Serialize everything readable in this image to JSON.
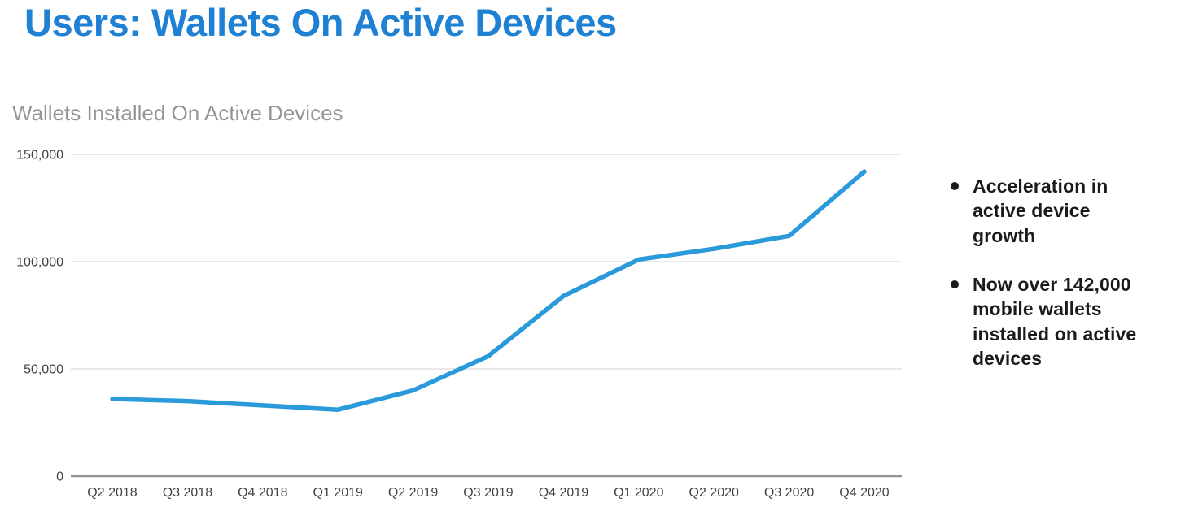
{
  "slide": {
    "title": "Users: Wallets On Active Devices",
    "title_color": "#1e81d4",
    "background": "#ffffff"
  },
  "chart_data": {
    "type": "line",
    "title": "Wallets Installed On Active Devices",
    "title_color": "#969696",
    "categories": [
      "Q2 2018",
      "Q3 2018",
      "Q4 2018",
      "Q1 2019",
      "Q2 2019",
      "Q3 2019",
      "Q4 2019",
      "Q1 2020",
      "Q2 2020",
      "Q3 2020",
      "Q4 2020"
    ],
    "series": [
      {
        "name": "Wallets Installed On Active Devices",
        "color": "#2b9ada",
        "values": [
          36000,
          35000,
          33000,
          31000,
          40000,
          56000,
          84000,
          101000,
          106000,
          112000,
          142000
        ]
      }
    ],
    "xlabel": "",
    "ylabel": "",
    "ylim": [
      0,
      150000
    ],
    "yticks": [
      0,
      50000,
      100000,
      150000
    ],
    "ytick_labels": [
      "0",
      "50,000",
      "100,000",
      "150,000"
    ],
    "grid": "horizontal",
    "legend": "none"
  },
  "bullets": {
    "text_color": "#1b1b1b",
    "items": [
      "Acceleration in active device growth",
      "Now over 142,000 mobile wallets installed on active devices"
    ]
  }
}
